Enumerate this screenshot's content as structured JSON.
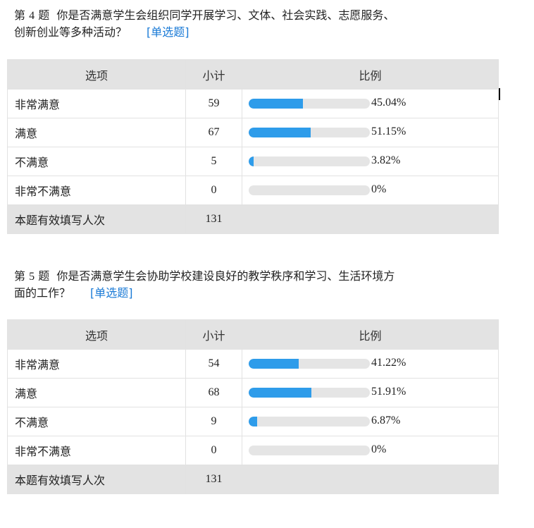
{
  "header_labels": {
    "option": "选项",
    "count": "小计",
    "ratio": "比例"
  },
  "questions": [
    {
      "number_prefix": "第",
      "number": "4",
      "number_suffix": "题",
      "text_line1": "你是否满意学生会组织同学开展学习、文体、社会实践、志愿服务、",
      "text_line2": "创新创业等多种活动？",
      "type_label": "[单选题]",
      "rows": [
        {
          "option": "非常满意",
          "count": "59",
          "percent": "45.04%",
          "fraction": 0.4504
        },
        {
          "option": "满意",
          "count": "67",
          "percent": "51.15%",
          "fraction": 0.5115
        },
        {
          "option": "不满意",
          "count": "5",
          "percent": "3.82%",
          "fraction": 0.0382
        },
        {
          "option": "非常不满意",
          "count": "0",
          "percent": "0%",
          "fraction": 0
        }
      ],
      "total_label": "本题有效填写人次",
      "total_count": "131"
    },
    {
      "number_prefix": "第",
      "number": "5",
      "number_suffix": "题",
      "text_line1": "你是否满意学生会协助学校建设良好的教学秩序和学习、生活环境方",
      "text_line2": "面的工作？",
      "type_label": "[单选题]",
      "rows": [
        {
          "option": "非常满意",
          "count": "54",
          "percent": "41.22%",
          "fraction": 0.4122
        },
        {
          "option": "满意",
          "count": "68",
          "percent": "51.91%",
          "fraction": 0.5191
        },
        {
          "option": "不满意",
          "count": "9",
          "percent": "6.87%",
          "fraction": 0.0687
        },
        {
          "option": "非常不满意",
          "count": "0",
          "percent": "0%",
          "fraction": 0
        }
      ],
      "total_label": "本题有效填写人次",
      "total_count": "131"
    }
  ],
  "colors": {
    "bar_fill": "#2e9cea",
    "bar_track": "#e5e5e5",
    "header_bg": "#e3e3e3",
    "link": "#1a7ad6"
  }
}
